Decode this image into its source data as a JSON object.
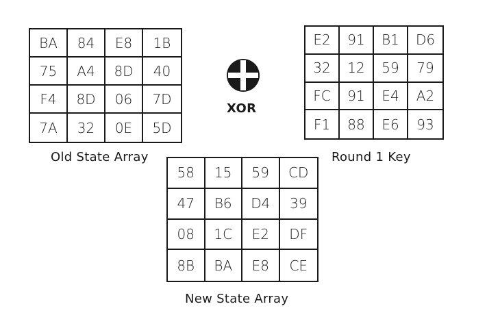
{
  "old_state": {
    "label": "Old State Array",
    "rows": [
      [
        "BA",
        "84",
        "E8",
        "1B"
      ],
      [
        "75",
        "A4",
        "8D",
        "40"
      ],
      [
        "F4",
        "8D",
        "06",
        "7D"
      ],
      [
        "7A",
        "32",
        "0E",
        "5D"
      ]
    ]
  },
  "round_key": {
    "label": "Round 1 Key",
    "rows": [
      [
        "E2",
        "91",
        "B1",
        "D6"
      ],
      [
        "32",
        "12",
        "59",
        "79"
      ],
      [
        "FC",
        "91",
        "E4",
        "A2"
      ],
      [
        "F1",
        "88",
        "E6",
        "93"
      ]
    ]
  },
  "new_state": {
    "label": "New State Array",
    "rows": [
      [
        "58",
        "15",
        "59",
        "CD"
      ],
      [
        "47",
        "B6",
        "D4",
        "39"
      ],
      [
        "08",
        "1C",
        "E2",
        "DF"
      ],
      [
        "8B",
        "BA",
        "E8",
        "CE"
      ]
    ]
  },
  "operator": {
    "label": "XOR",
    "icon": "xor-circle-plus-icon",
    "color": "#1a1a1a"
  }
}
